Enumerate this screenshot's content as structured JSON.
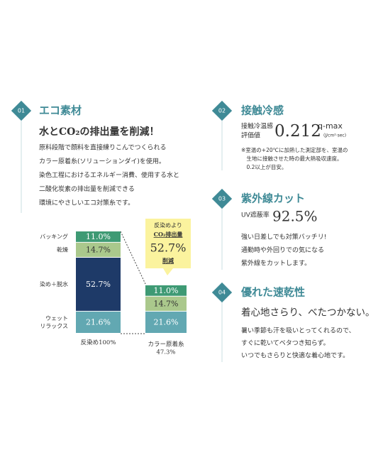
{
  "chart_data": {
    "type": "stacked-bar",
    "categories": [
      "反染め100%",
      "カラー原着糸\n47.3%"
    ],
    "series": [
      {
        "name": "ウェット\nリラックス",
        "color": "#62a8b2",
        "values": [
          21.6,
          21.6
        ],
        "value_labels": [
          "21.6%",
          "21.6%"
        ]
      },
      {
        "name": "染め＋脱水",
        "color": "#1e3a68",
        "values": [
          52.7,
          null
        ],
        "value_labels": [
          "52.7%",
          null
        ]
      },
      {
        "name": "乾燥",
        "color": "#aac88c",
        "values": [
          14.7,
          14.7
        ],
        "value_labels": [
          "14.7%",
          "14.7%"
        ]
      },
      {
        "name": "バッキング",
        "color": "#3e9a74",
        "values": [
          11.0,
          11.0
        ],
        "value_labels": [
          "11.0%",
          "11.0%"
        ]
      }
    ],
    "callout": {
      "line1": "反染めより",
      "line2": "CO₂排出量",
      "value": "52.7%",
      "line3": "削減"
    }
  },
  "sections": [
    {
      "number": "01",
      "title": "エコ素材",
      "subtitle": "水とCO₂の排出量を削減！",
      "lines": [
        "原料段階で顔料を直接練りこんでつくられる",
        "カラー原着糸(ソリューションダイ)を使用。",
        "染色工程におけるエネルギー消費、使用する水と",
        "二酸化炭素の排出量を削減できる",
        "環境にやさしいエコ対策糸です。"
      ]
    },
    {
      "number": "02",
      "title": "接触冷感",
      "metric_label": [
        "接触冷温感",
        "評価値"
      ],
      "metric": "0.212",
      "unit": "q-max",
      "unit_sub": "(J/cm²·sec)",
      "lines": [
        "※室温の+20℃に加熱した測定部を、室温の",
        "　生地に接触させた時の最大熱吸収速度。",
        "　0.2以上が目安。"
      ]
    },
    {
      "number": "03",
      "title": "紫外線カット",
      "metric_label": "UV遮蔽率",
      "metric": "92.5%",
      "lines": [
        "強い日差しでも対策バッチリ!",
        "通勤時や外回りでの気になる",
        "紫外線をカットします。"
      ]
    },
    {
      "number": "04",
      "title": "優れた速乾性",
      "subtitle": "着心地さらり、べたつかない。",
      "lines": [
        "暑い季節も汗を吸いとってくれるので、",
        "すぐに乾いてベタつき知らず。",
        "いつでもさらりと快適な着心地です。"
      ]
    }
  ]
}
